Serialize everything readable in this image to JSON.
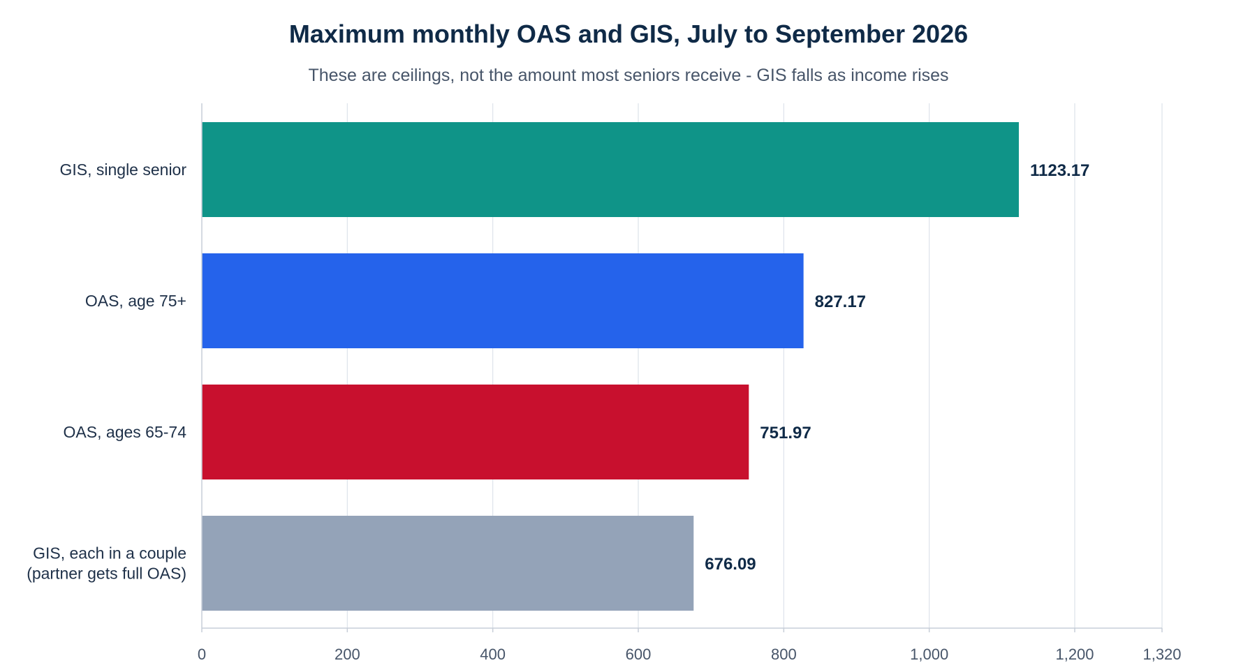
{
  "chart_data": {
    "type": "bar",
    "orientation": "horizontal",
    "title": "Maximum monthly OAS and GIS, July to September 2026",
    "subtitle": "These are ceilings, not the amount most seniors receive - GIS falls as income rises",
    "xlabel": "",
    "ylabel": "",
    "xlim": [
      0,
      1320
    ],
    "xticks": [
      0,
      200,
      400,
      600,
      800,
      1000,
      1200,
      1320
    ],
    "xtick_labels": [
      "0",
      "200",
      "400",
      "600",
      "800",
      "1,000",
      "1,200",
      "1,320"
    ],
    "grid": true,
    "categories": [
      [
        "GIS, single senior"
      ],
      [
        "OAS, age 75+"
      ],
      [
        "OAS, ages 65-74"
      ],
      [
        "GIS, each in a couple",
        "(partner gets full OAS)"
      ]
    ],
    "values": [
      1123.17,
      827.17,
      751.97,
      676.09
    ],
    "value_labels": [
      "1123.17",
      "827.17",
      "751.97",
      "676.09"
    ],
    "colors": [
      "#0f9488",
      "#2563eb",
      "#c8102e",
      "#94a3b8"
    ]
  }
}
